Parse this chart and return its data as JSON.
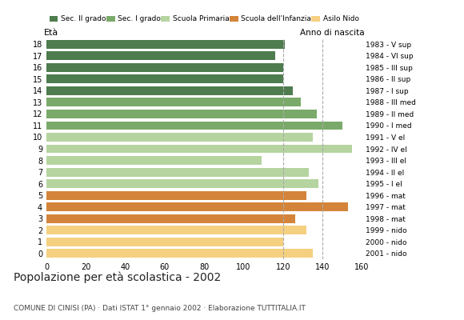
{
  "ages": [
    18,
    17,
    16,
    15,
    14,
    13,
    12,
    11,
    10,
    9,
    8,
    7,
    6,
    5,
    4,
    3,
    2,
    1,
    0
  ],
  "values": [
    121,
    116,
    120,
    120,
    125,
    129,
    137,
    150,
    135,
    155,
    109,
    133,
    138,
    132,
    153,
    126,
    132,
    120,
    135
  ],
  "anni_nascita": [
    "1983 - V sup",
    "1984 - VI sup",
    "1985 - III sup",
    "1986 - II sup",
    "1987 - I sup",
    "1988 - III med",
    "1989 - II med",
    "1990 - I med",
    "1991 - V el",
    "1992 - IV el",
    "1993 - III el",
    "1994 - II el",
    "1995 - I el",
    "1996 - mat",
    "1997 - mat",
    "1998 - mat",
    "1999 - nido",
    "2000 - nido",
    "2001 - nido"
  ],
  "colors": [
    "#4e7c4e",
    "#4e7c4e",
    "#4e7c4e",
    "#4e7c4e",
    "#4e7c4e",
    "#7aaa6a",
    "#7aaa6a",
    "#7aaa6a",
    "#b5d4a0",
    "#b5d4a0",
    "#b5d4a0",
    "#b5d4a0",
    "#b5d4a0",
    "#d4843a",
    "#d4843a",
    "#d4843a",
    "#f5d080",
    "#f5d080",
    "#f5d080"
  ],
  "legend_labels": [
    "Sec. II grado",
    "Sec. I grado",
    "Scuola Primaria",
    "Scuola dell'Infanzia",
    "Asilo Nido"
  ],
  "legend_colors": [
    "#4e7c4e",
    "#7aaa6a",
    "#b5d4a0",
    "#d4843a",
    "#f5d080"
  ],
  "title": "Popolazione per età scolastica - 2002",
  "subtitle": "COMUNE DI CINISI (PA) · Dati ISTAT 1° gennaio 2002 · Elaborazione TUTTITALIA.IT",
  "xlabel_eta": "Età",
  "xlabel_anno": "Anno di nascita",
  "xlim": [
    0,
    160
  ],
  "xticks": [
    0,
    20,
    40,
    60,
    80,
    100,
    120,
    140,
    160
  ],
  "bg_color": "#ffffff",
  "bar_height": 0.75,
  "grid_color": "#aaaaaa",
  "dashed_lines": [
    120,
    140
  ]
}
